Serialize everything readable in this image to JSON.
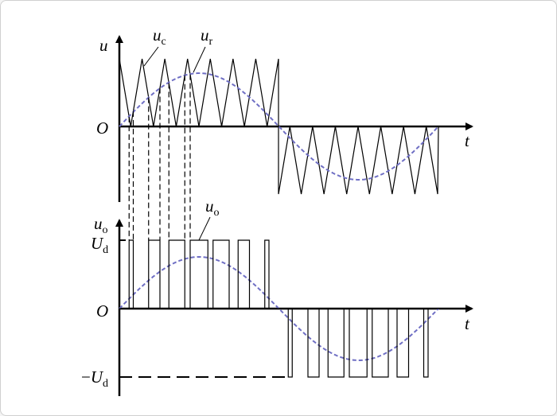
{
  "top_plot": {
    "y_axis_label": "u",
    "x_axis_label": "t",
    "origin_label": "O",
    "carrier_label": {
      "main": "u",
      "sub": "c"
    },
    "reference_label": {
      "main": "u",
      "sub": "r"
    }
  },
  "bottom_plot": {
    "y_axis_label": {
      "main": "u",
      "sub": "o"
    },
    "x_axis_label": "t",
    "origin_label": "O",
    "positive_level_label": {
      "main": "U",
      "sub": "d"
    },
    "negative_level_label": {
      "sign": "−",
      "main": "U",
      "sub": "d"
    },
    "output_label": {
      "main": "u",
      "sub": "o"
    }
  },
  "colors": {
    "reference_sine": "#6f6fc4",
    "lines": "#000000"
  }
}
